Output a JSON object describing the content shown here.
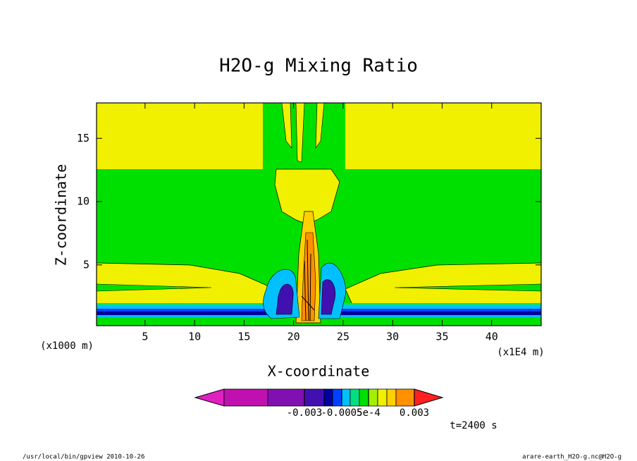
{
  "chart_data": {
    "type": "contour",
    "title": "H2O-g Mixing Ratio",
    "xlabel": "X-coordinate",
    "ylabel": "Z-coordinate",
    "yunit": "(x1000 m)",
    "xunit": "(x1E4 m)",
    "annotation": "t=2400 s",
    "footer_left": "/usr/local/bin/gpview  2010-10-26",
    "footer_right": "arare-earth_H2O-g.nc@H2O-g",
    "xlim": [
      0.1,
      45
    ],
    "xticks": [
      5,
      10,
      15,
      20,
      25,
      30,
      35,
      40
    ],
    "ylim": [
      0.2,
      17.8
    ],
    "yticks": [
      5,
      10,
      15
    ],
    "colorbar": {
      "colors": [
        "#e020c0",
        "#c010b0",
        "#8010b0",
        "#4010b0",
        "#0000a0",
        "#0040ff",
        "#00c0ff",
        "#00e080",
        "#00e000",
        "#a0f000",
        "#f0f000",
        "#ffd000",
        "#ff9000",
        "#ff2020"
      ],
      "levels": [
        null,
        null,
        -0.003,
        null,
        null,
        -0.0005,
        null,
        null,
        {
          "value": 0.0005,
          "label": "5e-4"
        },
        null,
        null,
        null,
        0.003
      ]
    }
  }
}
